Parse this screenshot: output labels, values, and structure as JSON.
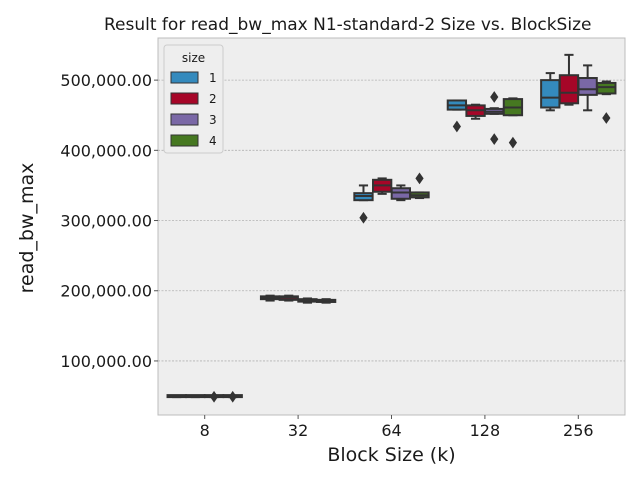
{
  "chart_data": {
    "type": "box",
    "title": "Result for read_bw_max N1-standard-2 Size vs. BlockSize",
    "xlabel": "Block Size (k)",
    "ylabel": "read_bw_max",
    "categories": [
      "8",
      "32",
      "64",
      "128",
      "256"
    ],
    "ylim": [
      23000,
      560000
    ],
    "yticks": [
      100000,
      200000,
      300000,
      400000,
      500000
    ],
    "ytick_labels": [
      "100,000.00",
      "200,000.00",
      "300,000.00",
      "400,000.00",
      "500,000.00"
    ],
    "grid": true,
    "legend": {
      "title": "size",
      "placement": "top-left"
    },
    "series": [
      {
        "name": "1",
        "color": "#348ABD",
        "boxes": [
          {
            "whislo": 48500,
            "q1": 48500,
            "med": 49000,
            "q3": 49500,
            "whishi": 49500,
            "fliers": []
          },
          {
            "whislo": 186000,
            "q1": 188000,
            "med": 190000,
            "q3": 192000,
            "whishi": 193000,
            "fliers": []
          },
          {
            "whislo": 329000,
            "q1": 329000,
            "med": 335000,
            "q3": 339000,
            "whishi": 350000,
            "fliers": [
              304000
            ]
          },
          {
            "whislo": 458000,
            "q1": 458000,
            "med": 464000,
            "q3": 471000,
            "whishi": 471000,
            "fliers": [
              434000
            ]
          },
          {
            "whislo": 457000,
            "q1": 461000,
            "med": 475000,
            "q3": 500000,
            "whishi": 510000,
            "fliers": []
          }
        ]
      },
      {
        "name": "2",
        "color": "#A60628",
        "boxes": [
          {
            "whislo": 48500,
            "q1": 48500,
            "med": 49000,
            "q3": 49500,
            "whishi": 49500,
            "fliers": []
          },
          {
            "whislo": 186000,
            "q1": 187000,
            "med": 190000,
            "q3": 192000,
            "whishi": 193000,
            "fliers": []
          },
          {
            "whislo": 338000,
            "q1": 341000,
            "med": 350000,
            "q3": 358000,
            "whishi": 360000,
            "fliers": []
          },
          {
            "whislo": 445000,
            "q1": 449000,
            "med": 457000,
            "q3": 464000,
            "whishi": 465000,
            "fliers": []
          },
          {
            "whislo": 465000,
            "q1": 467000,
            "med": 482000,
            "q3": 507000,
            "whishi": 536000,
            "fliers": []
          }
        ]
      },
      {
        "name": "3",
        "color": "#7A68A6",
        "boxes": [
          {
            "whislo": 48500,
            "q1": 48500,
            "med": 49000,
            "q3": 49500,
            "whishi": 49500,
            "fliers": [
              49000
            ]
          },
          {
            "whislo": 183000,
            "q1": 184500,
            "med": 186000,
            "q3": 188000,
            "whishi": 189000,
            "fliers": []
          },
          {
            "whislo": 329000,
            "q1": 331000,
            "med": 340000,
            "q3": 346000,
            "whishi": 350000,
            "fliers": []
          },
          {
            "whislo": 452000,
            "q1": 452000,
            "med": 455000,
            "q3": 459000,
            "whishi": 460000,
            "fliers": [
              476000,
              416000
            ]
          },
          {
            "whislo": 457000,
            "q1": 479000,
            "med": 487000,
            "q3": 503000,
            "whishi": 521000,
            "fliers": []
          }
        ]
      },
      {
        "name": "4",
        "color": "#467821",
        "boxes": [
          {
            "whislo": 48500,
            "q1": 48500,
            "med": 49000,
            "q3": 49500,
            "whishi": 49500,
            "fliers": [
              49000
            ]
          },
          {
            "whislo": 183000,
            "q1": 184000,
            "med": 185500,
            "q3": 187000,
            "whishi": 188000,
            "fliers": []
          },
          {
            "whislo": 332000,
            "q1": 333000,
            "med": 336000,
            "q3": 340000,
            "whishi": 340000,
            "fliers": [
              360000
            ]
          },
          {
            "whislo": 450000,
            "q1": 450000,
            "med": 461000,
            "q3": 473000,
            "whishi": 474000,
            "fliers": [
              411000
            ]
          },
          {
            "whislo": 480000,
            "q1": 481000,
            "med": 490000,
            "q3": 496000,
            "whishi": 498000,
            "fliers": [
              446000
            ]
          }
        ]
      }
    ]
  }
}
